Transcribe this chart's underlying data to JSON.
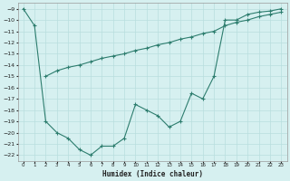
{
  "xlabel": "Humidex (Indice chaleur)",
  "bg_color": "#d6f0f0",
  "line_color": "#2d7d6e",
  "grid_color": "#b8dede",
  "xlim": [
    -0.5,
    23.5
  ],
  "ylim": [
    -22.5,
    -8.5
  ],
  "xticks": [
    0,
    1,
    2,
    3,
    4,
    5,
    6,
    7,
    8,
    9,
    10,
    11,
    12,
    13,
    14,
    15,
    16,
    17,
    18,
    19,
    20,
    21,
    22,
    23
  ],
  "yticks": [
    -9,
    -10,
    -11,
    -12,
    -13,
    -14,
    -15,
    -16,
    -17,
    -18,
    -19,
    -20,
    -21,
    -22
  ],
  "line1_x": [
    0,
    1,
    2,
    3,
    4,
    5,
    6,
    7,
    8,
    9,
    10,
    11,
    12,
    13,
    14,
    15,
    16,
    17,
    18,
    19,
    20,
    21,
    22,
    23
  ],
  "line1_y": [
    -9.0,
    -10.5,
    -19.0,
    -20.0,
    -20.5,
    -21.5,
    -22.0,
    -21.2,
    -21.2,
    -20.5,
    -17.5,
    -18.0,
    -18.5,
    -19.5,
    -19.0,
    -16.5,
    -17.0,
    -15.0,
    -10.0,
    -10.0,
    -9.5,
    -9.3,
    -9.2,
    -9.0
  ],
  "line2_x": [
    2,
    3,
    4,
    5,
    6,
    7,
    8,
    9,
    10,
    11,
    12,
    13,
    14,
    15,
    16,
    17,
    18,
    19,
    20,
    21,
    22,
    23
  ],
  "line2_y": [
    -15.0,
    -14.5,
    -14.2,
    -14.0,
    -13.7,
    -13.4,
    -13.2,
    -13.0,
    -12.7,
    -12.5,
    -12.2,
    -12.0,
    -11.7,
    -11.5,
    -11.2,
    -11.0,
    -10.5,
    -10.2,
    -10.0,
    -9.7,
    -9.5,
    -9.3
  ]
}
